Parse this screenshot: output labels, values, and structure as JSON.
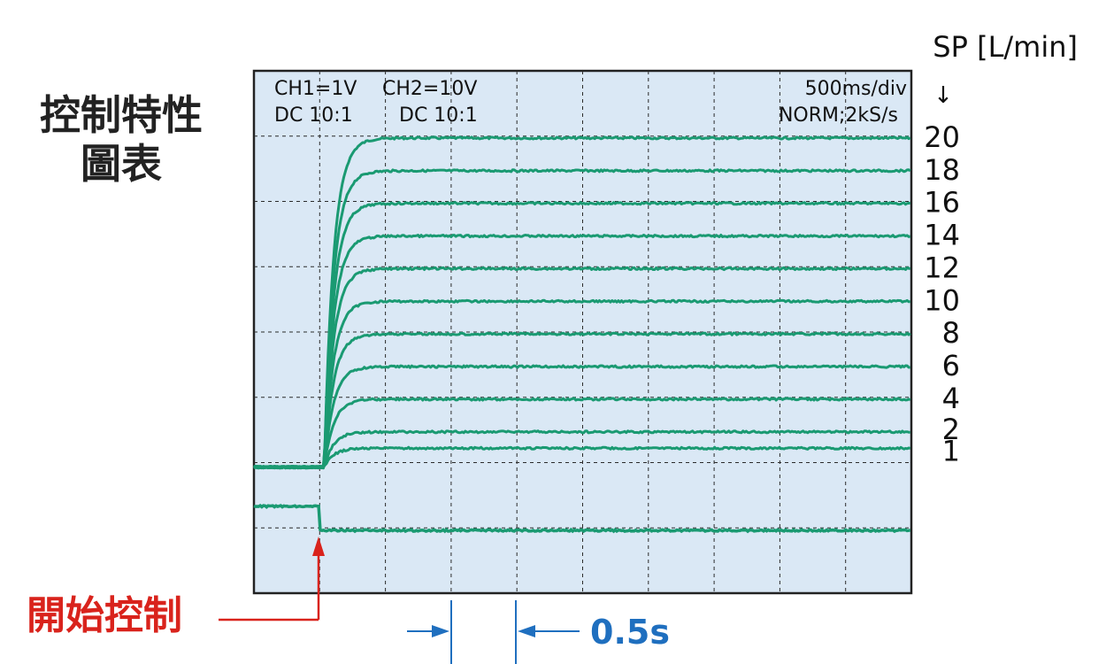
{
  "chart_data": {
    "type": "line",
    "title": "控制特性\n圖表",
    "title_lines": [
      "控制特性",
      "圖表"
    ],
    "ch_info": {
      "ch1": "CH1=1V",
      "ch1_coupling": "DC 10:1",
      "ch2": "CH2=10V",
      "ch2_coupling": "DC 10:1",
      "timebase": "500ms/div",
      "mode": "NORM;2kS/s"
    },
    "y_axis_label": "SP [L/min]",
    "y_axis_arrow": "↓",
    "x_range_ms": [
      -500,
      4500
    ],
    "y_range_div": [
      0,
      7
    ],
    "grid": true,
    "start_time_ms": 0,
    "rise_time_constant_ms": 70,
    "series": [
      {
        "name": "20",
        "final_div": 6.97
      },
      {
        "name": "18",
        "final_div": 6.47
      },
      {
        "name": "16",
        "final_div": 5.97
      },
      {
        "name": "14",
        "final_div": 5.47
      },
      {
        "name": "12",
        "final_div": 4.97
      },
      {
        "name": "10",
        "final_div": 4.47
      },
      {
        "name": "8",
        "final_div": 3.97
      },
      {
        "name": "6",
        "final_div": 3.47
      },
      {
        "name": "4",
        "final_div": 2.97
      },
      {
        "name": "2",
        "final_div": 2.47
      },
      {
        "name": "1",
        "final_div": 2.22
      }
    ],
    "baseline_div": 1.93,
    "trigger_trace": {
      "high_div": 1.33,
      "low_div": 0.96
    },
    "annotations": {
      "start_label": "開始控制",
      "time_span_label": "0.5s",
      "time_span_ms": [
        1000,
        1500
      ]
    },
    "colors": {
      "trace": "#1a9a72",
      "grid": "#2b2b2b",
      "plot_bg": "#dae8f5",
      "annotation_red": "#d9231c",
      "annotation_blue": "#1f6fbf"
    }
  }
}
